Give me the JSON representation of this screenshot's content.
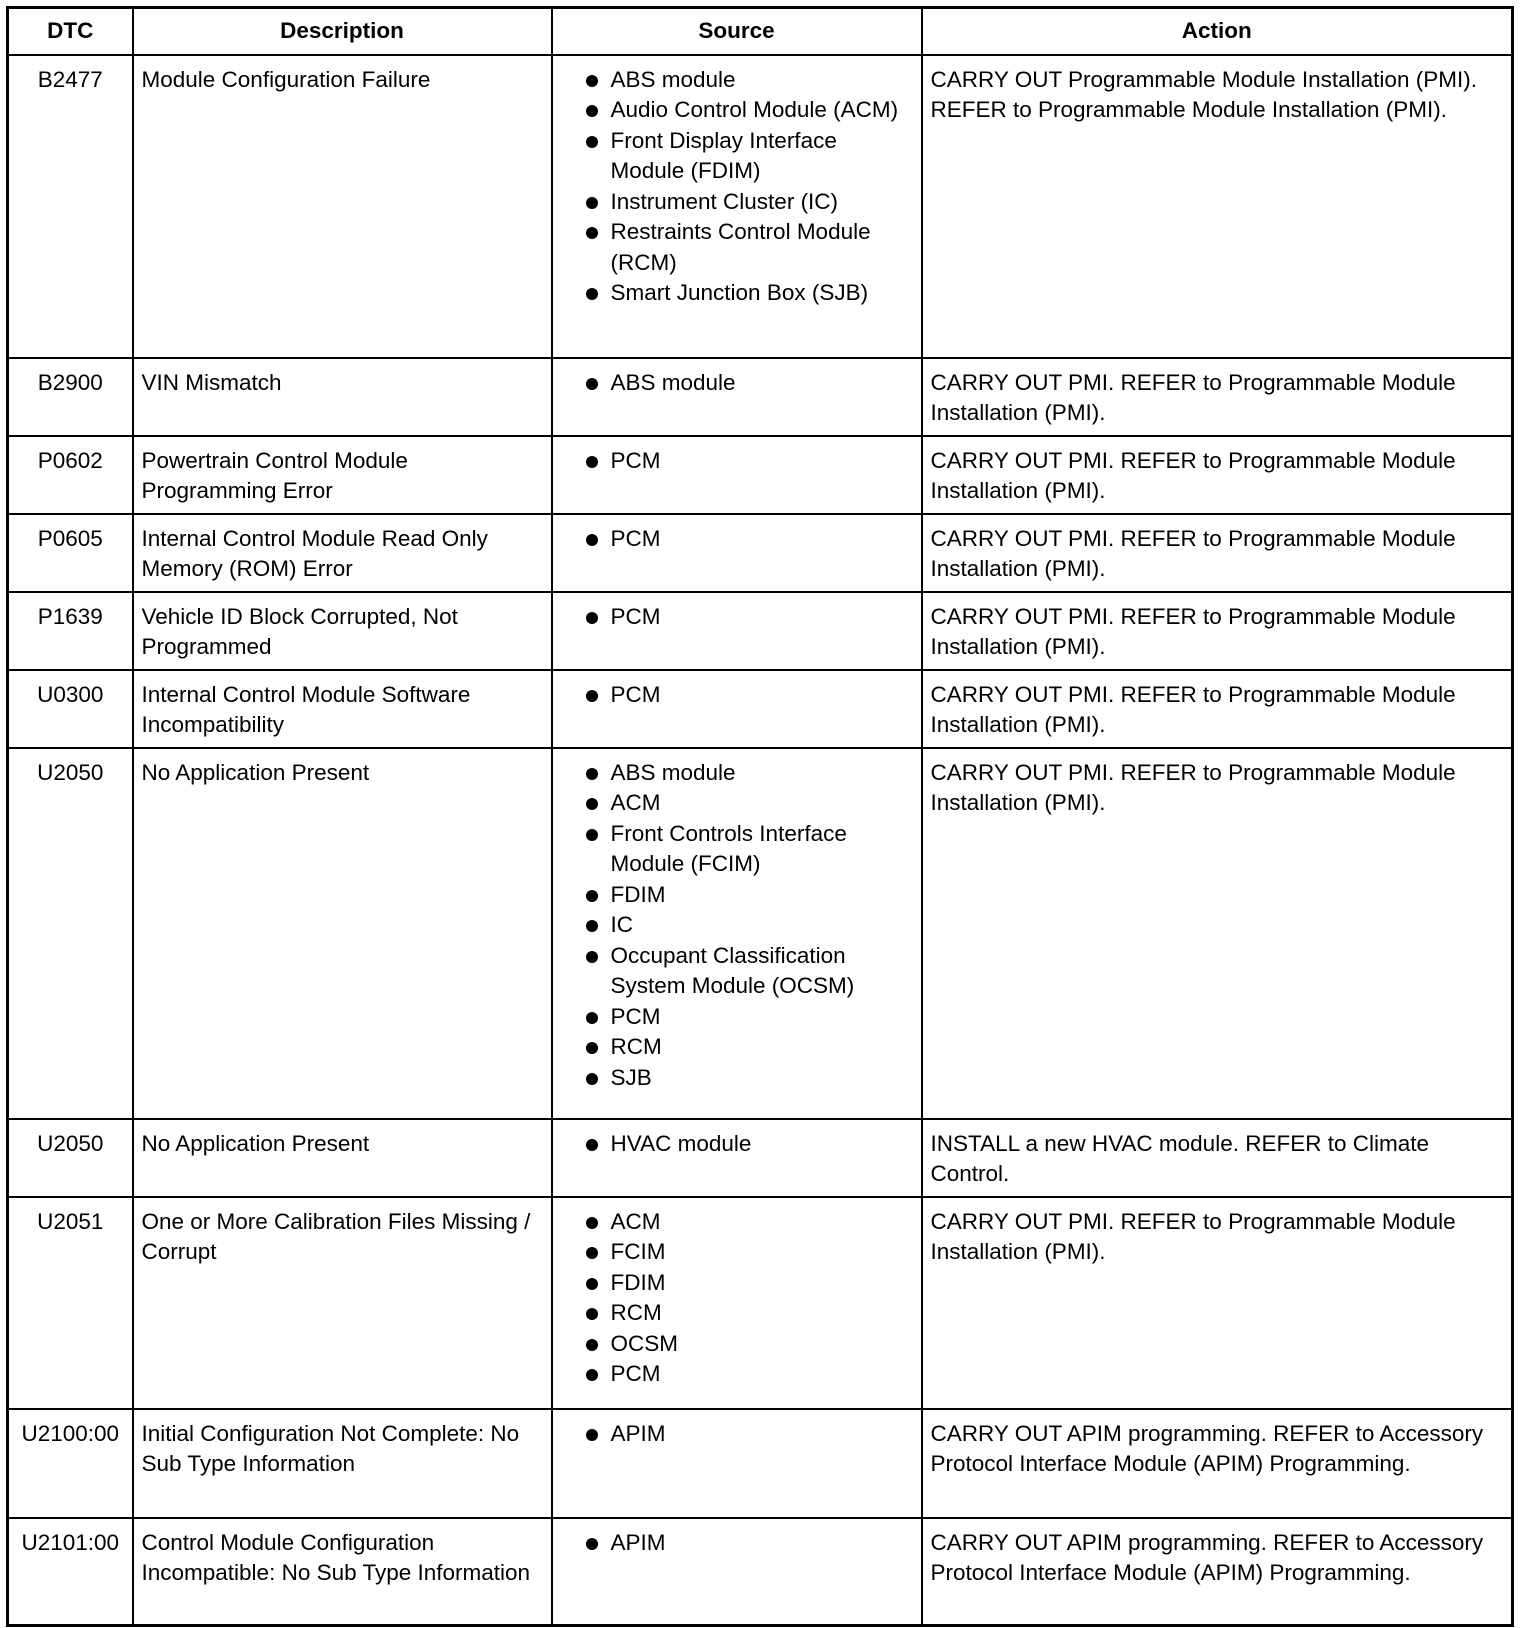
{
  "headers": [
    "DTC",
    "Description",
    "Source",
    "Action"
  ],
  "rows": [
    {
      "dtc": "B2477",
      "description": "Module Configuration Failure",
      "sources": [
        "ABS module",
        "Audio Control Module (ACM)",
        "Front Display Interface Module (FDIM)",
        "Instrument Cluster (IC)",
        "Restraints Control Module (RCM)",
        "Smart Junction Box (SJB)"
      ],
      "action": "CARRY OUT Programmable Module Installation (PMI). REFER to Programmable Module Installation (PMI)."
    },
    {
      "dtc": "B2900",
      "description": "VIN Mismatch",
      "sources": [
        "ABS module"
      ],
      "action": "CARRY OUT PMI. REFER to Programmable Module Installation (PMI)."
    },
    {
      "dtc": "P0602",
      "description": "Powertrain Control Module Programming Error",
      "sources": [
        "PCM"
      ],
      "action": "CARRY OUT PMI. REFER to Programmable Module Installation (PMI)."
    },
    {
      "dtc": "P0605",
      "description": "Internal Control Module Read Only Memory (ROM) Error",
      "sources": [
        "PCM"
      ],
      "action": "CARRY OUT PMI. REFER to Programmable Module Installation (PMI)."
    },
    {
      "dtc": "P1639",
      "description": "Vehicle ID Block Corrupted, Not Programmed",
      "sources": [
        "PCM"
      ],
      "action": "CARRY OUT PMI. REFER to Programmable Module Installation (PMI)."
    },
    {
      "dtc": "U0300",
      "description": "Internal Control Module Software Incompatibility",
      "sources": [
        "PCM"
      ],
      "action": "CARRY OUT PMI. REFER to Programmable Module Installation (PMI)."
    },
    {
      "dtc": "U2050",
      "description": "No Application Present",
      "sources": [
        "ABS module",
        "ACM",
        "Front Controls Interface Module (FCIM)",
        "FDIM",
        "IC",
        "Occupant Classification System Module (OCSM)",
        "PCM",
        "RCM",
        "SJB"
      ],
      "action": "CARRY OUT PMI. REFER to Programmable Module Installation (PMI)."
    },
    {
      "dtc": "U2050",
      "description": "No Application Present",
      "sources": [
        "HVAC module"
      ],
      "action": "INSTALL a new HVAC module. REFER to Climate Control."
    },
    {
      "dtc": "U2051",
      "description": "One or More Calibration Files Missing / Corrupt",
      "sources": [
        "ACM",
        "FCIM",
        "FDIM",
        "RCM",
        "OCSM",
        "PCM"
      ],
      "action": "CARRY OUT PMI. REFER to Programmable Module Installation (PMI)."
    },
    {
      "dtc": "U2100:00",
      "description": "Initial Configuration Not Complete: No Sub Type Information",
      "sources": [
        "APIM"
      ],
      "action": "CARRY OUT APIM programming. REFER to Accessory Protocol Interface Module (APIM) Programming."
    },
    {
      "dtc": "U2101:00",
      "description": "Control Module Configuration Incompatible: No Sub Type Information",
      "sources": [
        "APIM"
      ],
      "action": "CARRY OUT APIM programming. REFER to Accessory Protocol Interface Module (APIM) Programming."
    }
  ]
}
